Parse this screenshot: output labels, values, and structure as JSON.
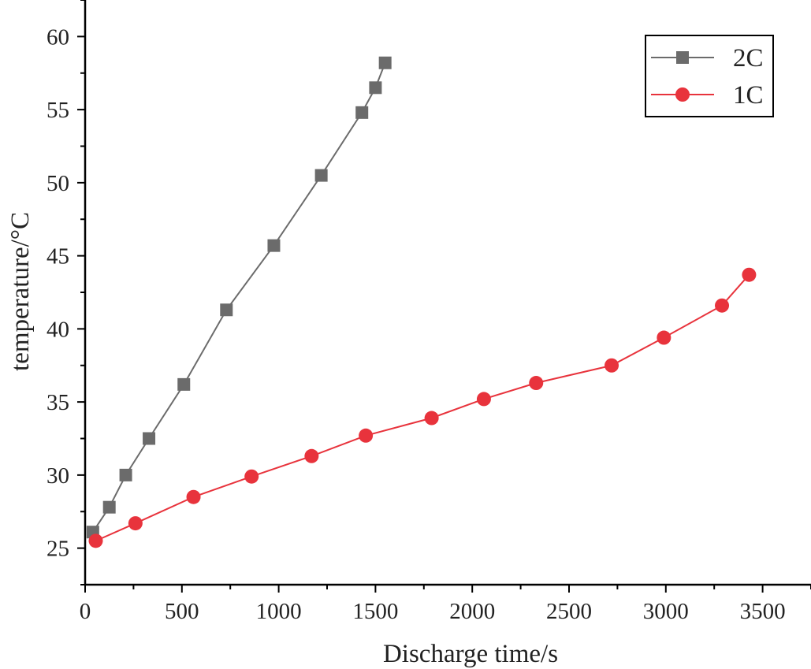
{
  "chart_data": {
    "type": "line",
    "title": "",
    "xlabel": "Discharge time/s",
    "ylabel": "temperature/°C",
    "xlim": [
      0,
      3750
    ],
    "ylim": [
      22.5,
      62.5
    ],
    "xticks": [
      0,
      500,
      1000,
      1500,
      2000,
      2500,
      3000,
      3500
    ],
    "xtick_labels": [
      "0",
      "500",
      "1000",
      "1500",
      "2000",
      "2500",
      "3000",
      "3500"
    ],
    "yticks": [
      25,
      30,
      35,
      40,
      45,
      50,
      55,
      60
    ],
    "ytick_labels": [
      "25",
      "30",
      "35",
      "40",
      "45",
      "50",
      "55",
      "60"
    ],
    "grid": false,
    "legend_position": "top-right",
    "series": [
      {
        "name": "2C",
        "marker": "square",
        "color": "#6b6b6b",
        "points": [
          [
            40,
            26.1
          ],
          [
            125,
            27.8
          ],
          [
            210,
            30.0
          ],
          [
            330,
            32.5
          ],
          [
            510,
            36.2
          ],
          [
            730,
            41.3
          ],
          [
            975,
            45.7
          ],
          [
            1220,
            50.5
          ],
          [
            1430,
            54.8
          ],
          [
            1500,
            56.5
          ],
          [
            1550,
            58.2
          ]
        ]
      },
      {
        "name": "1C",
        "marker": "circle",
        "color": "#e8333c",
        "points": [
          [
            55,
            25.5
          ],
          [
            260,
            26.7
          ],
          [
            560,
            28.5
          ],
          [
            860,
            29.9
          ],
          [
            1170,
            31.3
          ],
          [
            1450,
            32.7
          ],
          [
            1790,
            33.9
          ],
          [
            2060,
            35.2
          ],
          [
            2330,
            36.3
          ],
          [
            2720,
            37.5
          ],
          [
            2990,
            39.4
          ],
          [
            3290,
            41.6
          ],
          [
            3430,
            43.7
          ]
        ]
      }
    ]
  }
}
